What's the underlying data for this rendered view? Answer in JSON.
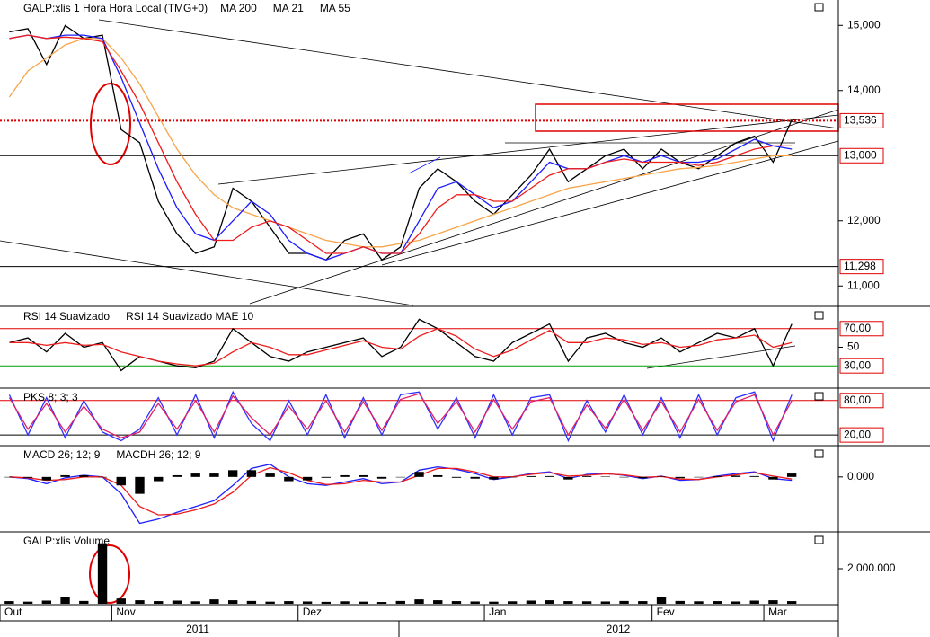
{
  "chart_data": [
    {
      "type": "line",
      "title": "GALP:xlis 1 Hora Hora Local (TMG+0)",
      "categories": [
        "Out",
        null,
        null,
        null,
        null,
        null,
        "Nov",
        null,
        null,
        null,
        null,
        null,
        null,
        null,
        null,
        null,
        "Dez",
        null,
        null,
        null,
        null,
        null,
        null,
        null,
        null,
        null,
        "Jan",
        null,
        null,
        null,
        null,
        null,
        null,
        null,
        null,
        "Fev",
        null,
        null,
        null,
        null,
        null,
        "Mar",
        null,
        null,
        null
      ],
      "ylim": [
        10700,
        15390
      ],
      "yticks": [
        {
          "value": 15000,
          "label": "15,000"
        },
        {
          "value": 14000,
          "label": "14,000"
        },
        {
          "value": 12000,
          "label": "12,000"
        },
        {
          "value": 11000,
          "label": "11,000"
        }
      ],
      "hlines": [
        {
          "value": 13536,
          "label": "13,536",
          "color": "#e00000",
          "style": "dotted"
        },
        {
          "value": 13000,
          "label": "13,000",
          "color": "#000000",
          "style": "solid"
        },
        {
          "value": 11298,
          "label": "11,298",
          "color": "#000000",
          "style": "solid"
        }
      ],
      "series": [
        {
          "color": "#000000",
          "values": [
            14900,
            14950,
            14400,
            15000,
            14800,
            14850,
            13400,
            13200,
            12300,
            11800,
            11500,
            11600,
            12500,
            12300,
            11900,
            11500,
            11500,
            11400,
            11700,
            11800,
            11400,
            11600,
            12500,
            12800,
            12600,
            12300,
            12100,
            12400,
            12700,
            13100,
            12600,
            12800,
            13000,
            13100,
            12800,
            13100,
            12900,
            12800,
            13000,
            13200,
            13300,
            12900,
            13550,
            null,
            null
          ]
        },
        {
          "name": "MA 200",
          "color": "#f7a448",
          "values": [
            13900,
            14300,
            14500,
            14700,
            14800,
            14800,
            14500,
            14100,
            13600,
            13100,
            12700,
            12400,
            12200,
            12100,
            12000,
            11900,
            11800,
            11700,
            11650,
            11600,
            11600,
            11650,
            11700,
            11800,
            11900,
            12000,
            12100,
            12200,
            12300,
            12400,
            12500,
            12550,
            12600,
            12650,
            12700,
            12750,
            12800,
            12820,
            12850,
            12900,
            12950,
            13000,
            13000,
            null,
            null
          ]
        },
        {
          "name": "MA 21",
          "color": "#1c1cff",
          "values": [
            14800,
            14850,
            14800,
            14850,
            14850,
            14800,
            14200,
            13500,
            12800,
            12200,
            11800,
            11700,
            12000,
            12300,
            12100,
            11700,
            11500,
            11400,
            11500,
            11600,
            11500,
            11500,
            12000,
            12500,
            12600,
            12400,
            12200,
            12300,
            12600,
            12900,
            12800,
            12800,
            12900,
            13000,
            12900,
            13000,
            12900,
            12900,
            12950,
            13100,
            13250,
            13150,
            13100,
            null,
            null
          ]
        },
        {
          "name": "MA 55",
          "color": "#ee1c1c",
          "values": [
            14800,
            14850,
            14800,
            14820,
            14800,
            14750,
            14300,
            13800,
            13200,
            12600,
            12100,
            11700,
            11700,
            11900,
            12000,
            11900,
            11700,
            11500,
            11500,
            11600,
            11500,
            11500,
            11800,
            12200,
            12400,
            12400,
            12300,
            12300,
            12500,
            12700,
            12800,
            12800,
            12900,
            12950,
            12900,
            12900,
            12900,
            12850,
            12900,
            13000,
            13100,
            13150,
            13150,
            null,
            null
          ]
        }
      ]
    },
    {
      "type": "line",
      "ylim": [
        7,
        92
      ],
      "yticks": [
        50
      ],
      "hlines": [
        {
          "value": 70,
          "label": "70,00",
          "color": "#e00000",
          "style": "solid"
        },
        {
          "value": 30,
          "label": "30,00",
          "color": "#00a000",
          "style": "solid"
        }
      ],
      "series": [
        {
          "name": "RSI 14 Suavizado",
          "color": "#000000",
          "values": [
            55,
            60,
            45,
            65,
            50,
            55,
            25,
            40,
            35,
            30,
            28,
            35,
            70,
            55,
            40,
            35,
            45,
            50,
            55,
            60,
            40,
            50,
            80,
            70,
            55,
            40,
            35,
            55,
            65,
            75,
            35,
            60,
            65,
            55,
            50,
            60,
            45,
            55,
            65,
            60,
            70,
            30,
            75,
            null,
            null
          ]
        },
        {
          "name": "RSI 14 Suavizado MAE 10",
          "color": "#ee1c1c",
          "values": [
            55,
            55,
            52,
            55,
            52,
            53,
            45,
            40,
            35,
            32,
            30,
            33,
            45,
            55,
            50,
            42,
            42,
            47,
            52,
            57,
            50,
            48,
            62,
            70,
            62,
            48,
            40,
            47,
            58,
            68,
            55,
            55,
            60,
            58,
            53,
            55,
            50,
            52,
            58,
            60,
            63,
            50,
            55,
            null,
            null
          ]
        }
      ]
    },
    {
      "type": "line",
      "title": "PKS 8; 3; 3",
      "ylim": [
        3,
        100
      ],
      "yticks": [],
      "hlines": [
        {
          "value": 80,
          "label": "80,00",
          "color": "#e00000",
          "style": "solid"
        },
        {
          "value": 20,
          "label": "20,00",
          "color": "#000000",
          "style": "solid"
        }
      ],
      "series": [
        {
          "color": "#3030ff",
          "values": [
            90,
            20,
            85,
            15,
            80,
            25,
            10,
            30,
            85,
            20,
            90,
            15,
            95,
            40,
            10,
            80,
            20,
            90,
            15,
            85,
            20,
            90,
            95,
            30,
            85,
            15,
            90,
            20,
            85,
            90,
            10,
            80,
            25,
            90,
            20,
            85,
            15,
            90,
            20,
            85,
            95,
            10,
            90,
            null,
            null
          ]
        },
        {
          "color": "#e0206a",
          "values": [
            85,
            30,
            75,
            25,
            70,
            30,
            15,
            25,
            75,
            30,
            80,
            25,
            88,
            50,
            20,
            70,
            30,
            80,
            25,
            78,
            28,
            82,
            92,
            40,
            78,
            25,
            82,
            30,
            78,
            85,
            20,
            72,
            32,
            82,
            28,
            78,
            25,
            82,
            28,
            78,
            90,
            20,
            80,
            null,
            null
          ]
        }
      ]
    },
    {
      "type": "line",
      "ylim": [
        -640,
        360
      ],
      "yticks": [
        {
          "value": 0,
          "label": "0,000"
        }
      ],
      "hlines": [],
      "series": [
        {
          "name": "MACD 26; 12; 9",
          "color": "#2020ff",
          "values": [
            0,
            -20,
            -80,
            -10,
            20,
            0,
            -200,
            -550,
            -500,
            -420,
            -350,
            -280,
            -100,
            100,
            150,
            0,
            -80,
            -100,
            -60,
            -20,
            -80,
            -60,
            80,
            120,
            90,
            40,
            -30,
            0,
            40,
            60,
            -20,
            30,
            40,
            20,
            -20,
            10,
            -40,
            -30,
            10,
            40,
            60,
            -20,
            -40,
            null,
            null
          ]
        },
        {
          "color": "#ee1c1c",
          "values": [
            0,
            -10,
            -40,
            -30,
            0,
            0,
            -100,
            -350,
            -450,
            -440,
            -390,
            -320,
            -180,
            20,
            110,
            50,
            -40,
            -90,
            -80,
            -40,
            -60,
            -60,
            20,
            100,
            100,
            60,
            0,
            0,
            30,
            50,
            10,
            20,
            35,
            25,
            -5,
            5,
            -25,
            -30,
            0,
            25,
            50,
            10,
            -25,
            null,
            null
          ]
        },
        {
          "name": "MACDH 26; 12; 9",
          "color": "#000000",
          "bars": true,
          "values": [
            0,
            -10,
            -40,
            20,
            20,
            0,
            -100,
            -200,
            -50,
            20,
            40,
            40,
            80,
            80,
            40,
            -50,
            -40,
            -10,
            20,
            20,
            -20,
            0,
            60,
            20,
            -10,
            -20,
            -30,
            0,
            10,
            10,
            -30,
            10,
            5,
            -5,
            -15,
            5,
            -15,
            0,
            10,
            15,
            10,
            -30,
            40,
            null,
            null
          ]
        }
      ]
    },
    {
      "type": "bar",
      "title": "GALP:xlis Volume",
      "ylim": [
        0,
        4050000
      ],
      "yticks": [
        {
          "value": 2000000,
          "label": "2.000.000"
        }
      ],
      "hlines": [],
      "series": [
        {
          "color": "#000000",
          "bars": true,
          "values": [
            150000,
            120000,
            180000,
            400000,
            160000,
            3450000,
            300000,
            200000,
            150000,
            180000,
            140000,
            250000,
            200000,
            160000,
            120000,
            150000,
            130000,
            110000,
            140000,
            120000,
            100000,
            160000,
            250000,
            200000,
            150000,
            130000,
            120000,
            140000,
            180000,
            200000,
            150000,
            140000,
            130000,
            160000,
            150000,
            400000,
            160000,
            140000,
            150000,
            130000,
            180000,
            200000,
            150000,
            null,
            null
          ]
        }
      ]
    }
  ]
}
